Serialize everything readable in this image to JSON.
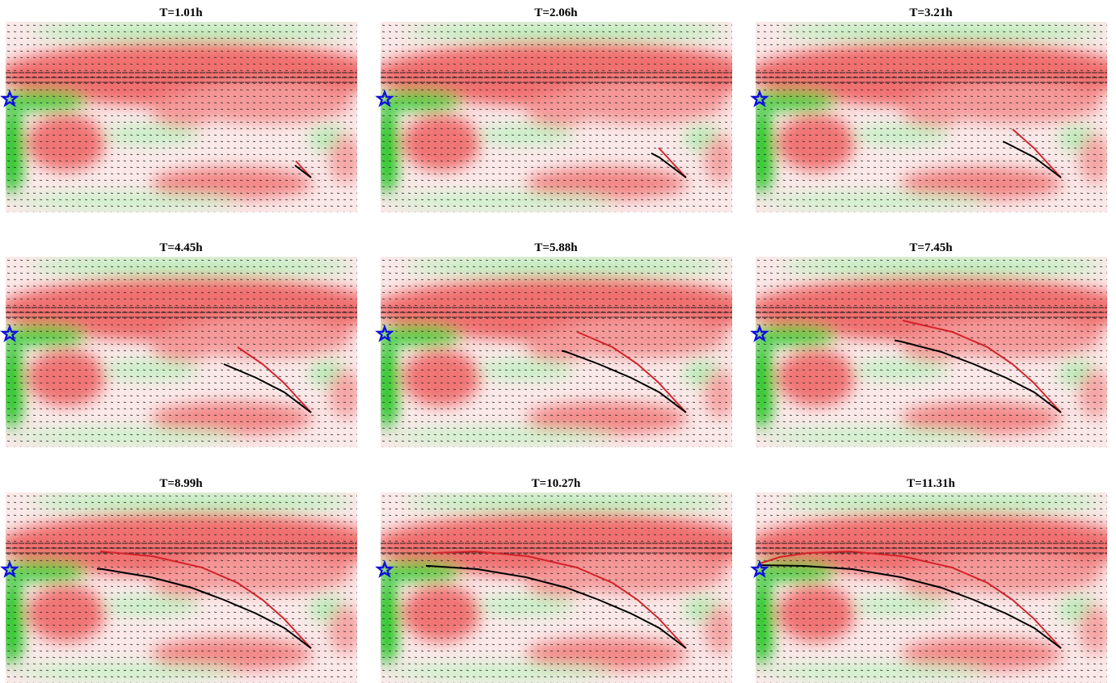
{
  "panels": [
    {
      "title": "T=1.01h"
    },
    {
      "title": "T=2.06h"
    },
    {
      "title": "T=3.21h"
    },
    {
      "title": "T=4.45h"
    },
    {
      "title": "T=5.88h"
    },
    {
      "title": "T=7.45h"
    },
    {
      "title": "T=8.99h"
    },
    {
      "title": "T=10.27h"
    },
    {
      "title": "T=11.31h"
    }
  ]
}
